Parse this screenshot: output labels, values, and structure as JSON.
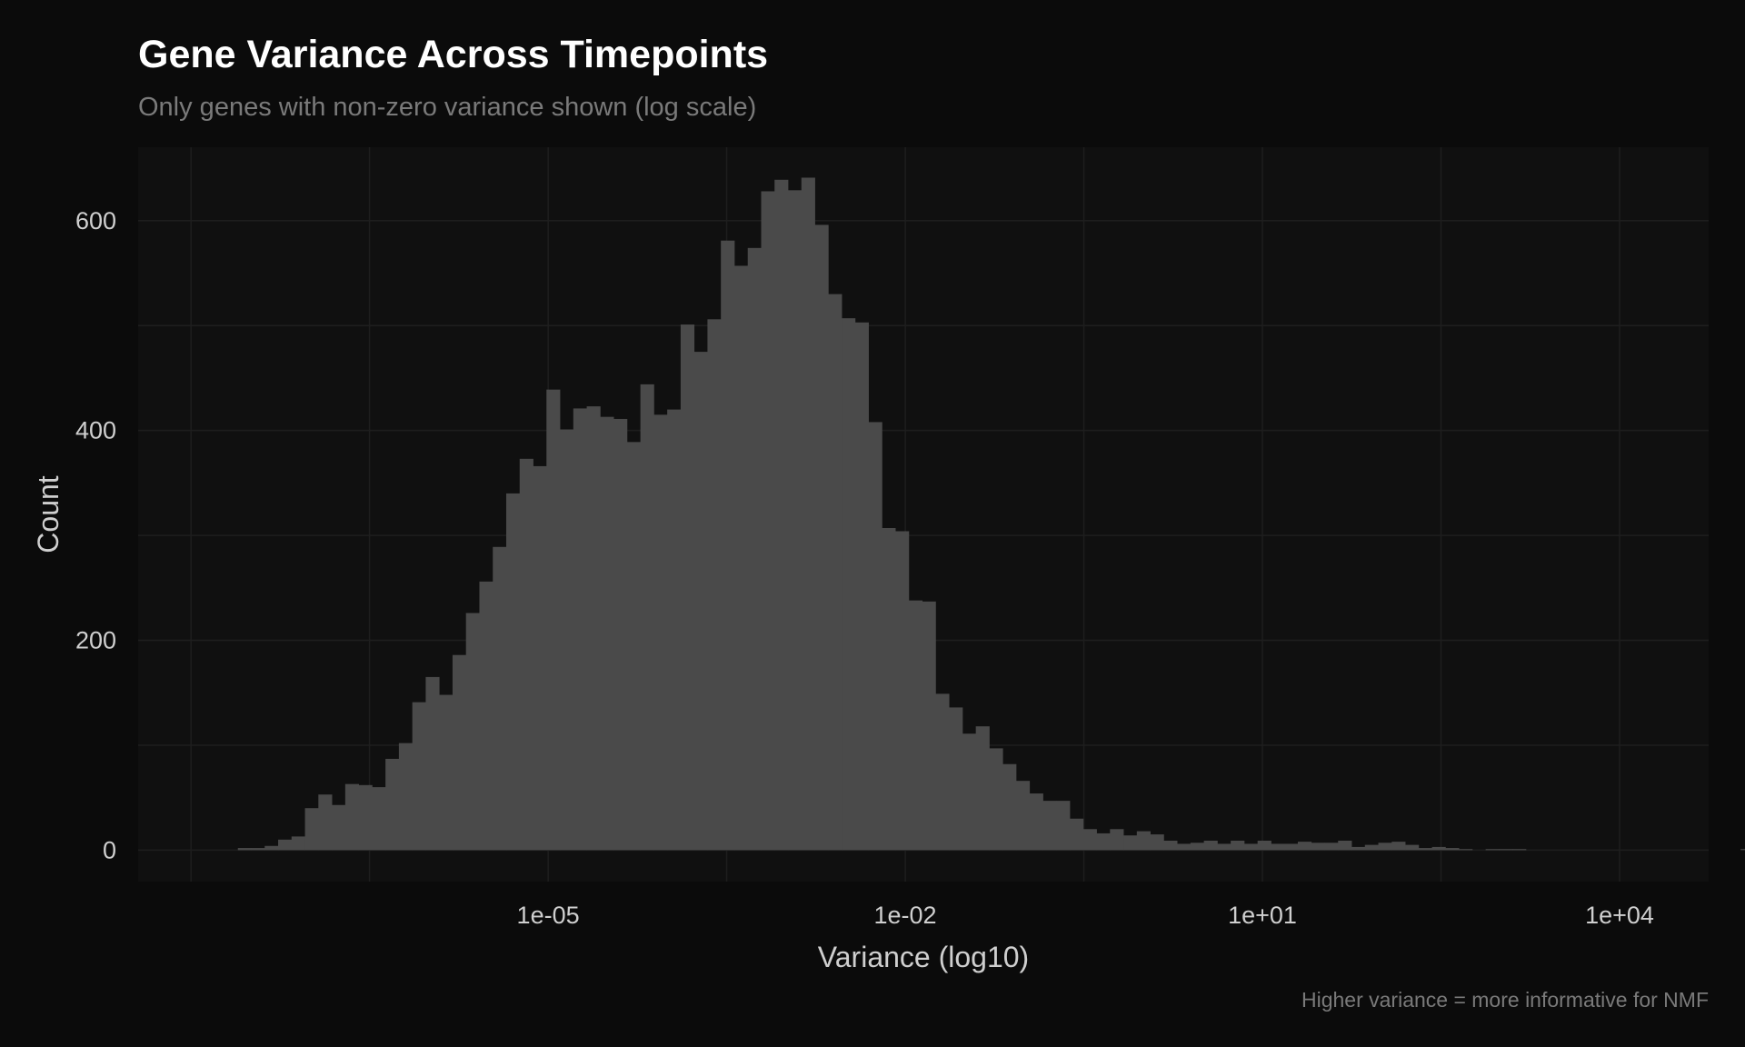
{
  "chart_data": {
    "type": "bar",
    "title": "Gene Variance Across Timepoints",
    "subtitle": "Only genes with non-zero variance shown (log scale)",
    "caption": "Higher variance = more informative for NMF",
    "xlabel": "Variance (log10)",
    "ylabel": "Count",
    "x_scale": "log10",
    "xlim": [
      3.6e-09,
      56000.0
    ],
    "ylim": [
      -30,
      670
    ],
    "x_ticks": [
      {
        "value": 1e-05,
        "label": "1e-05"
      },
      {
        "value": 0.01,
        "label": "1e-02"
      },
      {
        "value": 10.0,
        "label": "1e+01"
      },
      {
        "value": 10000.0,
        "label": "1e+04"
      }
    ],
    "y_ticks": [
      {
        "value": 0,
        "label": "0"
      },
      {
        "value": 200,
        "label": "200"
      },
      {
        "value": 400,
        "label": "400"
      },
      {
        "value": 600,
        "label": "600"
      }
    ],
    "grid": true,
    "bin_width_log10": 0.1127,
    "x_start_log10": -7.606,
    "counts": [
      2,
      2,
      4,
      10,
      13,
      40,
      53,
      43,
      63,
      62,
      60,
      87,
      102,
      141,
      165,
      148,
      186,
      226,
      256,
      289,
      340,
      373,
      366,
      439,
      401,
      421,
      423,
      413,
      411,
      389,
      444,
      415,
      420,
      501,
      475,
      506,
      581,
      557,
      574,
      628,
      639,
      629,
      641,
      596,
      530,
      507,
      503,
      408,
      307,
      304,
      238,
      237,
      149,
      136,
      111,
      118,
      97,
      82,
      66,
      54,
      47,
      47,
      30,
      20,
      16,
      20,
      14,
      18,
      15,
      9,
      6,
      7,
      9,
      6,
      9,
      6,
      9,
      6,
      6,
      8,
      7,
      7,
      9,
      3,
      5,
      7,
      8,
      5,
      2,
      3,
      2,
      1,
      0,
      1,
      1,
      1,
      0,
      0,
      0,
      0,
      0,
      0,
      0,
      0,
      0,
      0,
      0,
      0,
      0,
      0,
      0,
      0,
      1
    ],
    "bar_color": "#4a4a4a",
    "panel_color": "#101010",
    "background_color": "#0b0b0b",
    "grid_color": "#1e1e1e"
  }
}
